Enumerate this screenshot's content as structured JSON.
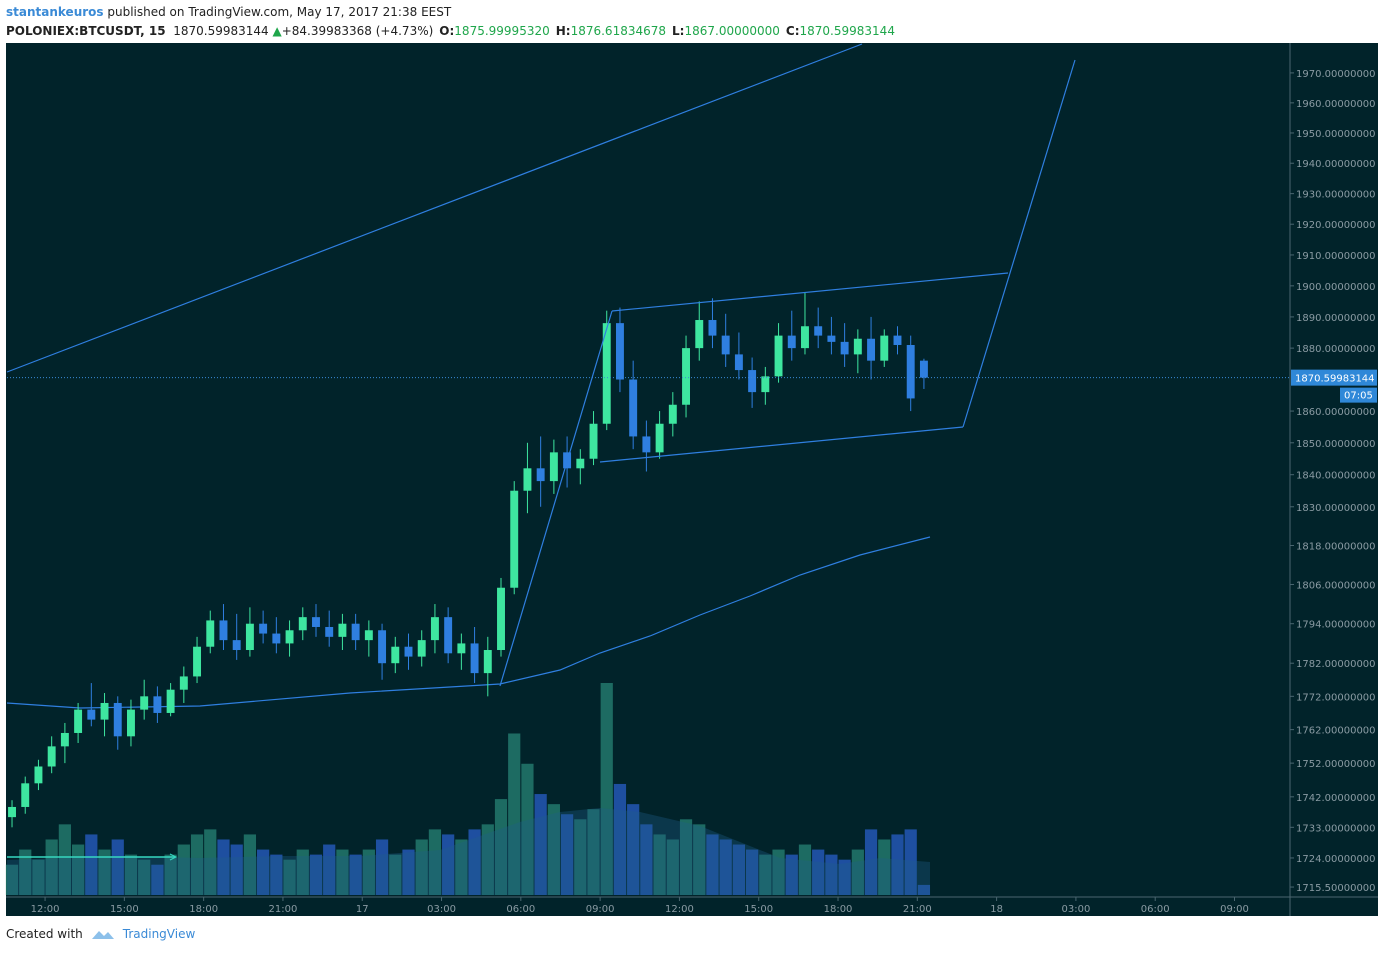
{
  "header": {
    "author": "stantankeuros",
    "published": "published on TradingView.com, May 17, 2017 21:38 EEST",
    "symbol": "POLONIEX:BTCUSDT, 15",
    "last": "1870.59983144",
    "change": "+84.39983368 (+4.73%)",
    "o_label": "O:",
    "open": "1875.99995320",
    "h_label": "H:",
    "high": "1876.61834678",
    "l_label": "L:",
    "low": "1867.00000000",
    "c_label": "C:",
    "close": "1870.59983144"
  },
  "footer": {
    "created_with": "Created with",
    "brand": "TradingView"
  },
  "chart_data": {
    "type": "candlestick",
    "log": true,
    "up_color": "#3ee6a0",
    "down_color": "#2f7fe0",
    "volume_up_color": "#1d6b62",
    "volume_down_color": "#1e4fa0",
    "last_price": 1870.59983144,
    "countdown": "07:05",
    "xlim": [
      -1.44,
      47.1
    ],
    "xticks": [
      {
        "value": 0,
        "label": "12:00"
      },
      {
        "value": 3,
        "label": "15:00"
      },
      {
        "value": 6,
        "label": "18:00"
      },
      {
        "value": 9,
        "label": "21:00"
      },
      {
        "value": 12,
        "label": "17"
      },
      {
        "value": 15,
        "label": "03:00"
      },
      {
        "value": 18,
        "label": "06:00"
      },
      {
        "value": 21,
        "label": "09:00"
      },
      {
        "value": 24,
        "label": "12:00"
      },
      {
        "value": 27,
        "label": "15:00"
      },
      {
        "value": 30,
        "label": "18:00"
      },
      {
        "value": 33,
        "label": "21:00"
      },
      {
        "value": 36,
        "label": "18"
      },
      {
        "value": 39,
        "label": "03:00"
      },
      {
        "value": 42,
        "label": "06:00"
      },
      {
        "value": 45,
        "label": "09:00"
      }
    ],
    "ylim": [
      1712.6,
      1979.7
    ],
    "yticks": [
      {
        "value": 1715.5,
        "label": "1715.50000000"
      },
      {
        "value": 1724,
        "label": "1724.00000000"
      },
      {
        "value": 1733,
        "label": "1733.00000000"
      },
      {
        "value": 1742,
        "label": "1742.00000000"
      },
      {
        "value": 1752,
        "label": "1752.00000000"
      },
      {
        "value": 1762,
        "label": "1762.00000000"
      },
      {
        "value": 1772,
        "label": "1772.00000000"
      },
      {
        "value": 1782,
        "label": "1782.00000000"
      },
      {
        "value": 1794,
        "label": "1794.00000000"
      },
      {
        "value": 1806,
        "label": "1806.00000000"
      },
      {
        "value": 1818,
        "label": "1818.00000000"
      },
      {
        "value": 1830,
        "label": "1830.00000000"
      },
      {
        "value": 1840,
        "label": "1840.00000000"
      },
      {
        "value": 1850,
        "label": "1850.00000000"
      },
      {
        "value": 1860,
        "label": "1860.00000000"
      },
      {
        "value": 1880,
        "label": "1880.00000000"
      },
      {
        "value": 1890,
        "label": "1890.00000000"
      },
      {
        "value": 1900,
        "label": "1900.00000000"
      },
      {
        "value": 1910,
        "label": "1910.00000000"
      },
      {
        "value": 1920,
        "label": "1920.00000000"
      },
      {
        "value": 1930,
        "label": "1930.00000000"
      },
      {
        "value": 1940,
        "label": "1940.00000000"
      },
      {
        "value": 1950,
        "label": "1950.00000000"
      },
      {
        "value": 1960,
        "label": "1960.00000000"
      },
      {
        "value": 1970,
        "label": "1970.00000000"
      }
    ],
    "x": [
      -1.25,
      -0.75,
      -0.25,
      0.25,
      0.75,
      1.25,
      1.75,
      2.25,
      2.75,
      3.25,
      3.75,
      4.25,
      4.75,
      5.25,
      5.75,
      6.25,
      6.75,
      7.25,
      7.75,
      8.25,
      8.75,
      9.25,
      9.75,
      10.25,
      10.75,
      11.25,
      11.75,
      12.25,
      12.75,
      13.25,
      13.75,
      14.25,
      14.75,
      15.25,
      15.75,
      16.25,
      16.75,
      17.25,
      17.75,
      18.25,
      18.75,
      19.25,
      19.75,
      20.25,
      20.75,
      21.25,
      21.75,
      22.25,
      22.75,
      23.25,
      23.75,
      24.25,
      24.75,
      25.25,
      25.75,
      26.25,
      26.75,
      27.25,
      27.75,
      28.25,
      28.75,
      29.25,
      29.75,
      30.25,
      30.75,
      31.25,
      31.75,
      32.25,
      32.75,
      33.25
    ],
    "open": [
      1736,
      1739,
      1746,
      1751,
      1757,
      1761,
      1768,
      1765,
      1770,
      1760,
      1768,
      1772,
      1767,
      1774,
      1778,
      1787,
      1795,
      1789,
      1786,
      1794,
      1791,
      1788,
      1792,
      1796,
      1793,
      1790,
      1794,
      1789,
      1792,
      1782,
      1787,
      1784,
      1789,
      1796,
      1785,
      1788,
      1779,
      1786,
      1805,
      1835,
      1842,
      1838,
      1847,
      1842,
      1845,
      1856,
      1888,
      1870,
      1852,
      1847,
      1856,
      1862,
      1880,
      1889,
      1884,
      1878,
      1873,
      1866,
      1871,
      1884,
      1880,
      1887,
      1884,
      1882,
      1878,
      1883,
      1876,
      1884,
      1881,
      1875.9999532
    ],
    "high": [
      1741,
      1748,
      1753,
      1760,
      1764,
      1770,
      1776,
      1773,
      1772,
      1771,
      1777,
      1775,
      1776,
      1781,
      1790,
      1798,
      1800,
      1797,
      1799,
      1798,
      1796,
      1795,
      1799,
      1800,
      1798,
      1797,
      1797,
      1795,
      1794,
      1790,
      1791,
      1792,
      1800,
      1799,
      1791,
      1793,
      1790,
      1808,
      1838,
      1850,
      1852,
      1851,
      1852,
      1848,
      1860,
      1892,
      1893,
      1876,
      1857,
      1860,
      1866,
      1884,
      1895,
      1896,
      1891,
      1885,
      1877,
      1874,
      1888,
      1892,
      1898,
      1893,
      1890,
      1888,
      1886,
      1890,
      1886,
      1887,
      1884,
      1876.61834678
    ],
    "low": [
      1733,
      1737,
      1744,
      1749,
      1752,
      1758,
      1763,
      1760,
      1756,
      1757,
      1765,
      1764,
      1766,
      1770,
      1776,
      1785,
      1786,
      1783,
      1784,
      1788,
      1785,
      1784,
      1789,
      1790,
      1787,
      1786,
      1786,
      1784,
      1777,
      1779,
      1780,
      1781,
      1785,
      1782,
      1780,
      1776,
      1772,
      1784,
      1803,
      1828,
      1830,
      1834,
      1836,
      1837,
      1843,
      1854,
      1866,
      1848,
      1841,
      1845,
      1852,
      1858,
      1876,
      1880,
      1874,
      1870,
      1861,
      1862,
      1869,
      1876,
      1878,
      1880,
      1878,
      1874,
      1872,
      1870,
      1874,
      1878,
      1860,
      1867
    ],
    "close": [
      1739,
      1746,
      1751,
      1757,
      1761,
      1768,
      1765,
      1770,
      1760,
      1768,
      1772,
      1767,
      1774,
      1778,
      1787,
      1795,
      1789,
      1786,
      1794,
      1791,
      1788,
      1792,
      1796,
      1793,
      1790,
      1794,
      1789,
      1792,
      1782,
      1787,
      1784,
      1789,
      1796,
      1785,
      1788,
      1779,
      1786,
      1805,
      1835,
      1842,
      1838,
      1847,
      1842,
      1845,
      1856,
      1888,
      1870,
      1852,
      1847,
      1856,
      1862,
      1880,
      1889,
      1884,
      1878,
      1873,
      1866,
      1871,
      1884,
      1880,
      1887,
      1884,
      1882,
      1878,
      1883,
      1876,
      1884,
      1881,
      1864,
      1870.59983144
    ],
    "volume": [
      30,
      45,
      35,
      55,
      70,
      50,
      60,
      45,
      55,
      40,
      35,
      30,
      40,
      50,
      60,
      65,
      55,
      50,
      60,
      45,
      40,
      35,
      45,
      40,
      50,
      45,
      40,
      45,
      55,
      40,
      45,
      55,
      65,
      60,
      55,
      65,
      70,
      95,
      160,
      130,
      100,
      90,
      80,
      75,
      85,
      210,
      110,
      90,
      70,
      60,
      55,
      75,
      70,
      60,
      55,
      50,
      45,
      40,
      45,
      40,
      50,
      45,
      40,
      35,
      45,
      65,
      55,
      60,
      65,
      10
    ]
  }
}
